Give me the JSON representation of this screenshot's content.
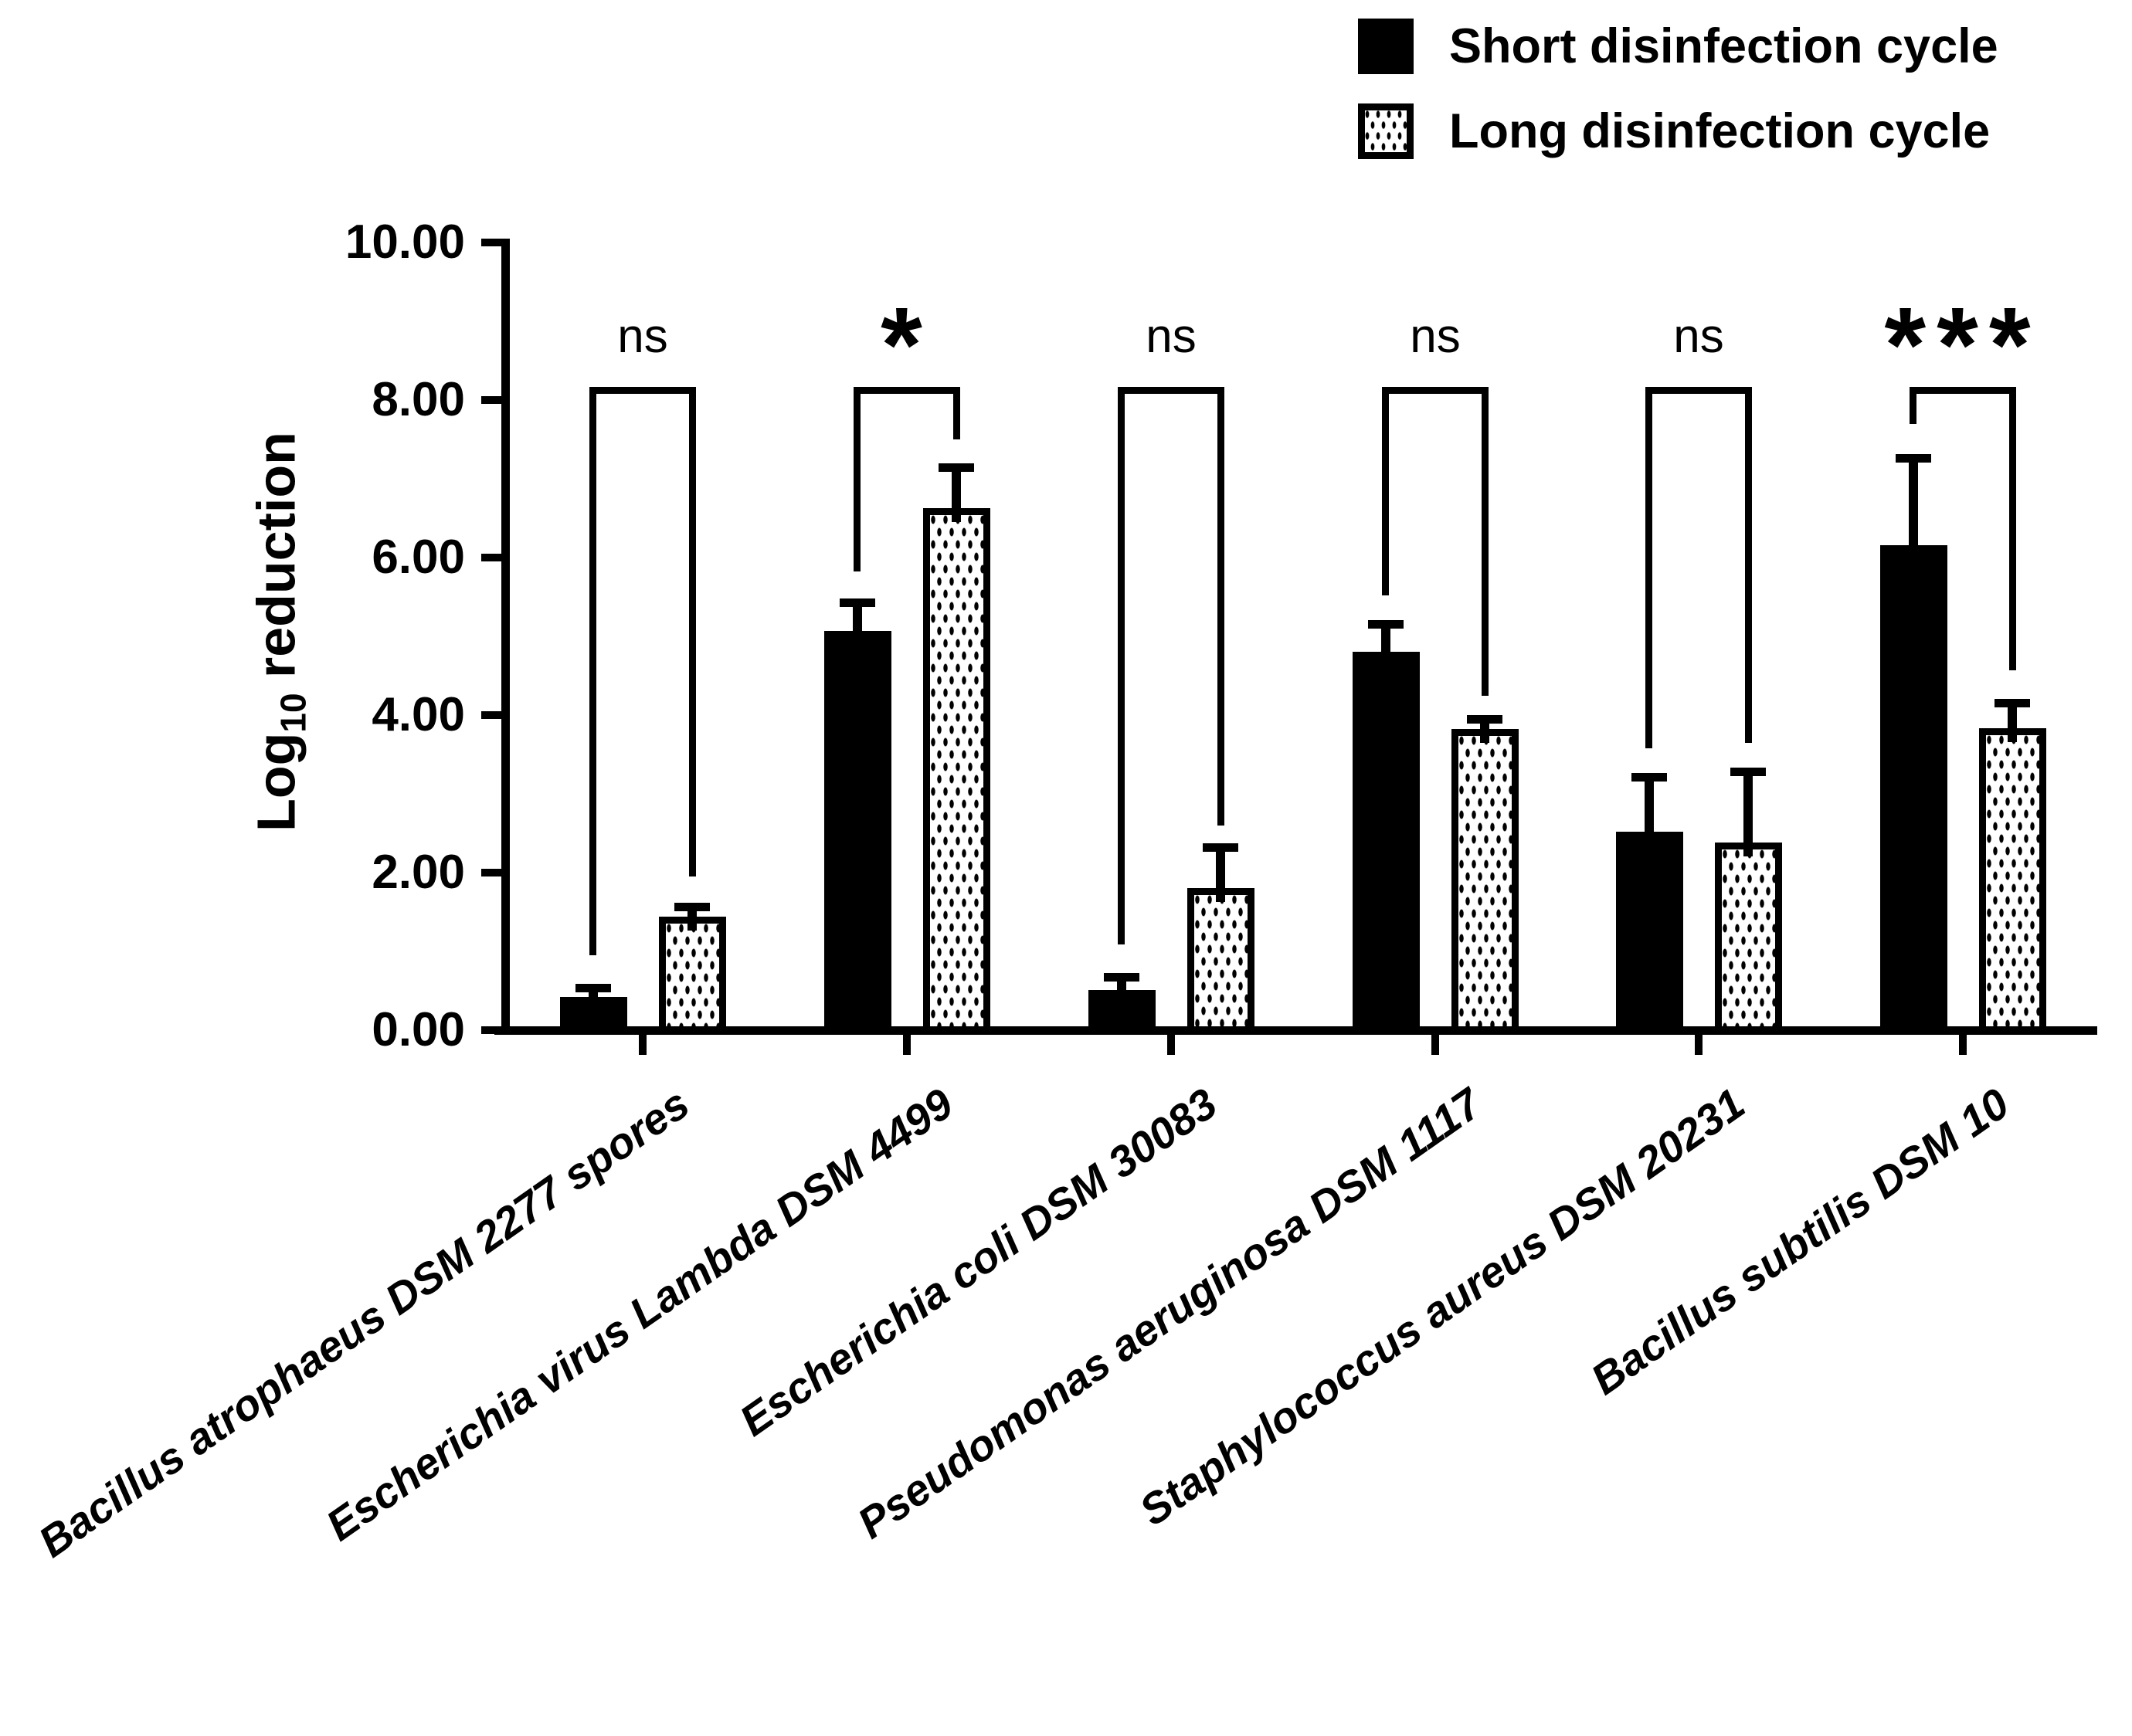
{
  "colors": {
    "ink": "#000000",
    "background": "#ffffff"
  },
  "yaxis_title": {
    "main": "Log",
    "sub": "10",
    "rest": " reduction"
  },
  "chart_data": {
    "type": "bar",
    "title": "",
    "xlabel": "",
    "ylabel": "Log10 reduction",
    "ylim": [
      0,
      10
    ],
    "ytick_values": [
      0,
      2,
      4,
      6,
      8,
      10
    ],
    "ytick_labels": [
      "0.00",
      "2.00",
      "4.00",
      "6.00",
      "8.00",
      "10.00"
    ],
    "grid": false,
    "legend_position": "top-right",
    "categories": [
      "Bacillus atrophaeus DSM 2277 spores",
      "Escherichia virus Lambda DSM 4499",
      "Escherichia coli DSM 30083",
      "Pseudomonas aeruginosa DSM 1117",
      "Staphylococcus aureus DSM 20231",
      "Bacillus subtilis DSM 10"
    ],
    "series": [
      {
        "name": "Short disinfection cycle",
        "fill": "solid-black",
        "values": [
          0.42,
          5.07,
          0.51,
          4.8,
          2.52,
          6.16
        ],
        "error_plus": [
          0.12,
          0.36,
          0.17,
          0.36,
          0.7,
          1.1
        ]
      },
      {
        "name": "Long disinfection cycle",
        "fill": "white-dotted",
        "values": [
          1.44,
          6.63,
          1.8,
          3.82,
          2.38,
          3.83
        ],
        "error_plus": [
          0.13,
          0.52,
          0.52,
          0.13,
          0.9,
          0.33
        ]
      }
    ],
    "significance_brackets": [
      {
        "category_index": 0,
        "label": "ns",
        "bracket_top": 8.17,
        "arm_end_left": 0.95,
        "arm_end_right": 1.95
      },
      {
        "category_index": 1,
        "label": "*",
        "bracket_top": 8.17,
        "arm_end_left": 5.82,
        "arm_end_right": 7.5
      },
      {
        "category_index": 2,
        "label": "ns",
        "bracket_top": 8.17,
        "arm_end_left": 1.09,
        "arm_end_right": 2.6
      },
      {
        "category_index": 3,
        "label": "ns",
        "bracket_top": 8.17,
        "arm_end_left": 5.52,
        "arm_end_right": 4.25
      },
      {
        "category_index": 4,
        "label": "ns",
        "bracket_top": 8.17,
        "arm_end_left": 3.58,
        "arm_end_right": 3.65
      },
      {
        "category_index": 5,
        "label": "***",
        "bracket_top": 8.17,
        "arm_end_left": 7.7,
        "arm_end_right": 4.57
      }
    ]
  }
}
